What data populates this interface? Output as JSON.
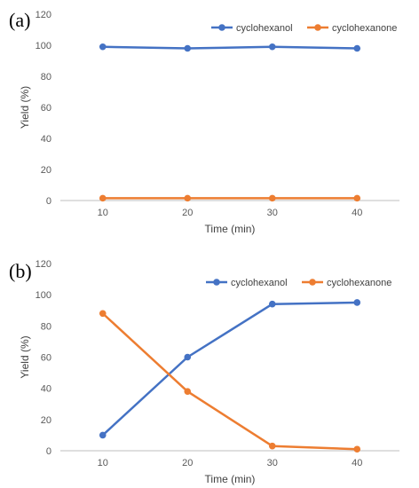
{
  "chart_data": [
    {
      "type": "line",
      "panel_label": "(a)",
      "title": "",
      "xlabel": "Time (min)",
      "ylabel": "Yield (%)",
      "categories": [
        "10",
        "20",
        "30",
        "40"
      ],
      "ylim": [
        0,
        120
      ],
      "yticks": [
        0,
        20,
        40,
        60,
        80,
        100,
        120
      ],
      "grid": false,
      "legend_position": "top-right",
      "series": [
        {
          "name": "cyclohexanol",
          "color": "#4472C4",
          "values": [
            99,
            98,
            99,
            98
          ]
        },
        {
          "name": "cyclohexanone",
          "color": "#ED7D31",
          "values": [
            1.5,
            1.5,
            1.5,
            1.5
          ]
        }
      ]
    },
    {
      "type": "line",
      "panel_label": "(b)",
      "title": "",
      "xlabel": "Time (min)",
      "ylabel": "Yield (%)",
      "categories": [
        "10",
        "20",
        "30",
        "40"
      ],
      "ylim": [
        0,
        120
      ],
      "yticks": [
        0,
        20,
        40,
        60,
        80,
        100,
        120
      ],
      "grid": false,
      "legend_position": "top-right",
      "series": [
        {
          "name": "cyclohexanol",
          "color": "#4472C4",
          "values": [
            10,
            60,
            94,
            95
          ]
        },
        {
          "name": "cyclohexanone",
          "color": "#ED7D31",
          "values": [
            88,
            38,
            3,
            1
          ]
        }
      ]
    }
  ]
}
